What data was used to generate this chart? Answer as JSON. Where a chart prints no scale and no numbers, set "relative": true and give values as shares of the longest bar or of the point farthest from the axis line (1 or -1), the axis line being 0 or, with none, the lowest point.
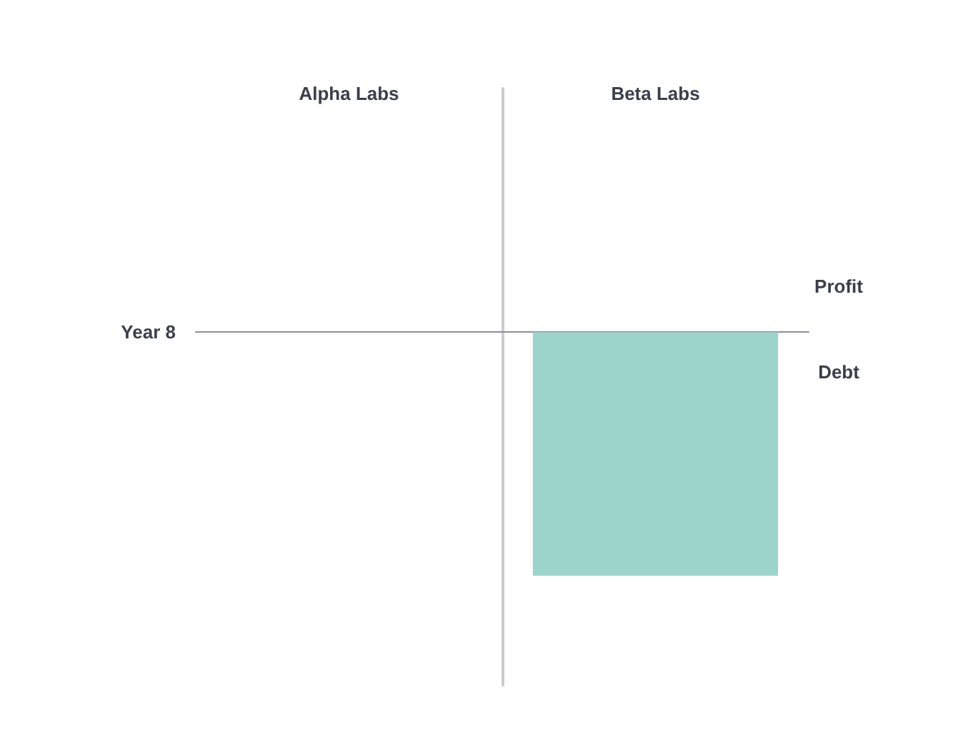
{
  "chart_data": {
    "type": "bar",
    "relative": true,
    "xlabel": "Year 8",
    "categories": [
      "Alpha Labs",
      "Beta Labs"
    ],
    "series": [
      {
        "name": "Profit",
        "values": [
          0,
          0
        ]
      },
      {
        "name": "Debt",
        "color": "#9cd3ca",
        "values": [
          0,
          -1
        ]
      }
    ]
  }
}
